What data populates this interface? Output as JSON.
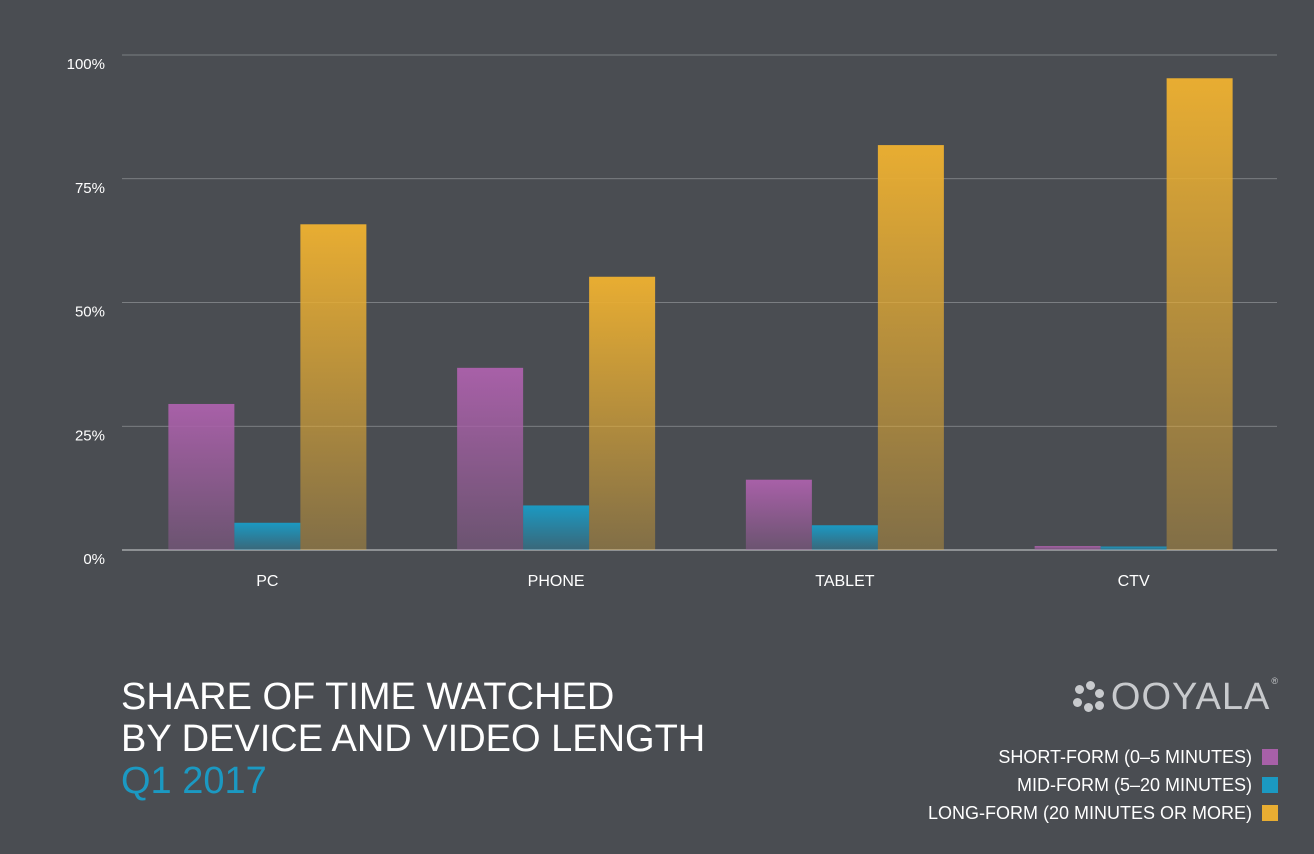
{
  "title": {
    "line1": "SHARE OF TIME WATCHED",
    "line2": "BY DEVICE AND VIDEO LENGTH",
    "line3": "Q1 2017"
  },
  "logo": {
    "text": "OOYALA",
    "reg": "®"
  },
  "colors": {
    "background": "#4a4d52",
    "short": "#a860a8",
    "mid": "#1b99c2",
    "long": "#e8ad32",
    "title_accent": "#1b99c2"
  },
  "chart_data": {
    "type": "bar",
    "categories": [
      "PC",
      "PHONE",
      "TABLET",
      "CTV"
    ],
    "series": [
      {
        "name": "SHORT-FORM (0–5 MINUTES)",
        "values": [
          29.5,
          36.8,
          14.2,
          0.8
        ],
        "color": "#a860a8"
      },
      {
        "name": "MID-FORM (5–20 MINUTES)",
        "values": [
          5.5,
          9.0,
          5.0,
          0.7
        ],
        "color": "#1b99c2"
      },
      {
        "name": "LONG-FORM (20 MINUTES OR MORE)",
        "values": [
          65.8,
          55.2,
          81.8,
          95.3
        ],
        "color": "#e8ad32"
      }
    ],
    "y_ticks": [
      "0%",
      "25%",
      "50%",
      "75%",
      "100%"
    ],
    "ylim": [
      0,
      100
    ],
    "grid": true,
    "legend": "bottom-right"
  }
}
